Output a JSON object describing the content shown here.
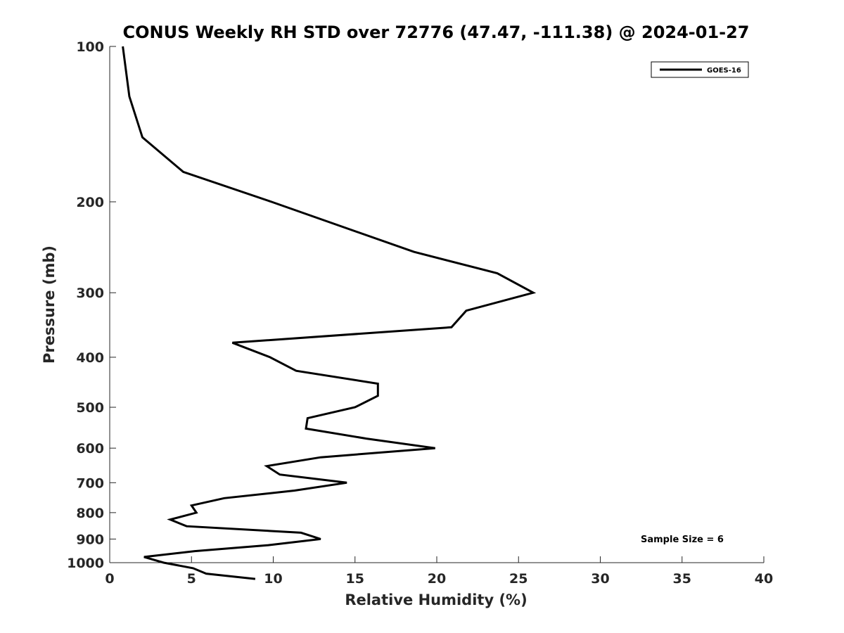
{
  "chart_data": {
    "type": "line",
    "title": "CONUS Weekly RH STD over 72776 (47.47, -111.38) @ 2024-01-27",
    "xlabel": "Relative Humidity (%)",
    "ylabel": "Pressure (mb)",
    "xlim": [
      0,
      40
    ],
    "ylim": [
      100,
      1000
    ],
    "y_scale": "log",
    "y_reversed": true,
    "x_ticks": [
      0,
      5,
      10,
      15,
      20,
      25,
      30,
      35,
      40
    ],
    "x_tick_labels": [
      "0",
      "5",
      "10",
      "15",
      "20",
      "25",
      "30",
      "35",
      "40"
    ],
    "y_ticks": [
      100,
      200,
      300,
      400,
      500,
      600,
      700,
      800,
      900,
      1000
    ],
    "y_tick_labels": [
      "100",
      "200",
      "300",
      "400",
      "500",
      "600",
      "700",
      "800",
      "900",
      "1000"
    ],
    "grid": false,
    "legend_position": "top-right",
    "annotation": "Sample Size = 6",
    "line_color": "#000000",
    "series": [
      {
        "name": "GOES-16",
        "points": [
          {
            "rh": 0.8,
            "p": 100
          },
          {
            "rh": 1.2,
            "p": 125
          },
          {
            "rh": 2.0,
            "p": 150
          },
          {
            "rh": 4.5,
            "p": 175
          },
          {
            "rh": 9.9,
            "p": 200
          },
          {
            "rh": 18.6,
            "p": 250
          },
          {
            "rh": 23.7,
            "p": 275
          },
          {
            "rh": 25.9,
            "p": 300
          },
          {
            "rh": 21.8,
            "p": 325
          },
          {
            "rh": 20.9,
            "p": 350
          },
          {
            "rh": 7.5,
            "p": 375
          },
          {
            "rh": 9.8,
            "p": 400
          },
          {
            "rh": 11.4,
            "p": 425
          },
          {
            "rh": 16.4,
            "p": 450
          },
          {
            "rh": 16.4,
            "p": 475
          },
          {
            "rh": 15.0,
            "p": 500
          },
          {
            "rh": 12.1,
            "p": 525
          },
          {
            "rh": 12.0,
            "p": 550
          },
          {
            "rh": 15.7,
            "p": 575
          },
          {
            "rh": 19.9,
            "p": 600
          },
          {
            "rh": 12.9,
            "p": 625
          },
          {
            "rh": 9.6,
            "p": 650
          },
          {
            "rh": 10.4,
            "p": 675
          },
          {
            "rh": 14.5,
            "p": 700
          },
          {
            "rh": 11.3,
            "p": 725
          },
          {
            "rh": 7.0,
            "p": 750
          },
          {
            "rh": 5.0,
            "p": 775
          },
          {
            "rh": 5.3,
            "p": 800
          },
          {
            "rh": 3.7,
            "p": 825
          },
          {
            "rh": 4.7,
            "p": 850
          },
          {
            "rh": 11.7,
            "p": 875
          },
          {
            "rh": 12.9,
            "p": 900
          },
          {
            "rh": 9.7,
            "p": 925
          },
          {
            "rh": 5.2,
            "p": 950
          },
          {
            "rh": 2.1,
            "p": 975
          },
          {
            "rh": 3.3,
            "p": 1000
          },
          {
            "rh": 5.1,
            "p": 1025
          },
          {
            "rh": 5.9,
            "p": 1050
          },
          {
            "rh": 8.9,
            "p": 1075
          }
        ]
      }
    ]
  }
}
